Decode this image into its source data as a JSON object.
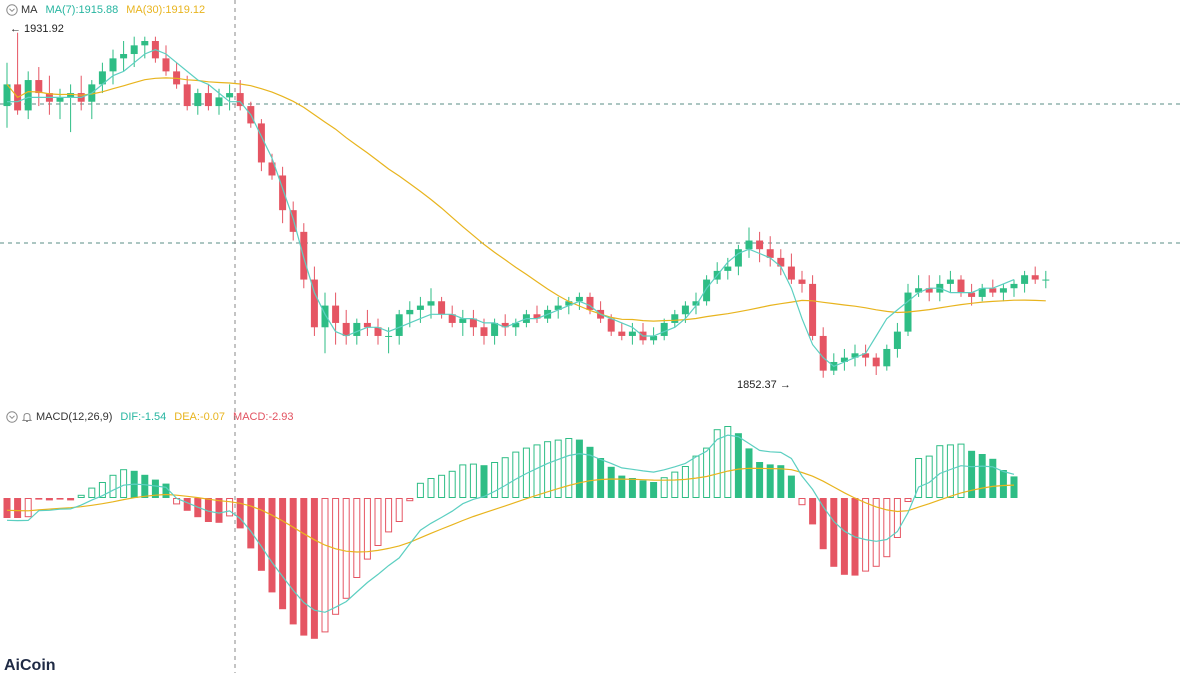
{
  "indicators": {
    "ma": {
      "label": "MA",
      "ma7": "MA(7):1915.88",
      "ma30": "MA(30):1919.12",
      "ma7_color": "#26b5a0",
      "ma30_color": "#e8b41e"
    },
    "macd": {
      "label": "MACD(12,26,9)",
      "dif": "DIF:-1.54",
      "dea": "DEA:-0.07",
      "macd": "MACD:-2.93",
      "dif_color": "#26b5a0",
      "dea_color": "#e8b41e",
      "macd_color": "#e25260"
    }
  },
  "annotations": {
    "high": "← 1931.92",
    "low": "1852.37 →"
  },
  "logo": "AiCoin",
  "colors": {
    "up": "#2ebd85",
    "down": "#e55563",
    "ma7": "#5ccfc1",
    "ma30": "#e8b41e",
    "dash": "#5a8c86",
    "crosshair": "#888888"
  },
  "chart_data": {
    "type": "candlestick",
    "price_panel": {
      "candles_ohlc": [
        [
          1915,
          1925,
          1910,
          1920
        ],
        [
          1920,
          1931.92,
          1913,
          1914
        ],
        [
          1914,
          1923,
          1912,
          1921
        ],
        [
          1921,
          1924,
          1915,
          1918
        ],
        [
          1918,
          1922,
          1913,
          1916
        ],
        [
          1916,
          1919,
          1912,
          1917
        ],
        [
          1917,
          1920,
          1909,
          1918
        ],
        [
          1918,
          1922,
          1914,
          1916
        ],
        [
          1916,
          1921,
          1912,
          1920
        ],
        [
          1920,
          1925,
          1918,
          1923
        ],
        [
          1923,
          1928,
          1920,
          1926
        ],
        [
          1926,
          1930,
          1923,
          1927
        ],
        [
          1927,
          1931,
          1924,
          1929
        ],
        [
          1929,
          1931,
          1926,
          1930
        ],
        [
          1930,
          1931,
          1925,
          1926
        ],
        [
          1926,
          1929,
          1922,
          1923
        ],
        [
          1923,
          1925,
          1919,
          1920
        ],
        [
          1920,
          1922,
          1914,
          1915
        ],
        [
          1915,
          1919,
          1913,
          1918
        ],
        [
          1918,
          1920,
          1914,
          1915
        ],
        [
          1915,
          1919,
          1913,
          1917
        ],
        [
          1917,
          1920,
          1914,
          1918
        ],
        [
          1918,
          1921,
          1914,
          1915
        ],
        [
          1915,
          1916,
          1910,
          1911
        ],
        [
          1911,
          1912,
          1900,
          1902
        ],
        [
          1902,
          1904,
          1898,
          1899
        ],
        [
          1899,
          1901,
          1888,
          1891
        ],
        [
          1891,
          1893,
          1884,
          1886
        ],
        [
          1886,
          1888,
          1873,
          1875
        ],
        [
          1875,
          1878,
          1862,
          1864
        ],
        [
          1864,
          1872,
          1858,
          1869
        ],
        [
          1869,
          1872,
          1860,
          1865
        ],
        [
          1865,
          1868,
          1860,
          1862
        ],
        [
          1862,
          1866,
          1860,
          1865
        ],
        [
          1865,
          1868,
          1862,
          1864
        ],
        [
          1864,
          1866,
          1860,
          1862
        ],
        [
          1862,
          1864,
          1858,
          1862
        ],
        [
          1862,
          1868,
          1860,
          1867
        ],
        [
          1867,
          1870,
          1864,
          1868
        ],
        [
          1868,
          1871,
          1865,
          1869
        ],
        [
          1869,
          1873,
          1866,
          1870
        ],
        [
          1870,
          1871,
          1866,
          1867
        ],
        [
          1867,
          1869,
          1864,
          1865
        ],
        [
          1865,
          1868,
          1862,
          1866
        ],
        [
          1866,
          1868,
          1862,
          1864
        ],
        [
          1864,
          1866,
          1860,
          1862
        ],
        [
          1862,
          1866,
          1860,
          1865
        ],
        [
          1865,
          1867,
          1862,
          1864
        ],
        [
          1864,
          1866,
          1862,
          1865
        ],
        [
          1865,
          1868,
          1864,
          1867
        ],
        [
          1867,
          1869,
          1865,
          1866
        ],
        [
          1866,
          1869,
          1865,
          1868
        ],
        [
          1868,
          1871,
          1866,
          1869
        ],
        [
          1869,
          1871,
          1867,
          1870
        ],
        [
          1870,
          1872,
          1868,
          1871
        ],
        [
          1871,
          1872,
          1867,
          1868
        ],
        [
          1868,
          1870,
          1865,
          1866
        ],
        [
          1866,
          1867,
          1862,
          1863
        ],
        [
          1863,
          1865,
          1861,
          1862
        ],
        [
          1862,
          1865,
          1860,
          1863
        ],
        [
          1863,
          1865,
          1860,
          1861
        ],
        [
          1861,
          1864,
          1860,
          1862
        ],
        [
          1862,
          1866,
          1861,
          1865
        ],
        [
          1865,
          1868,
          1864,
          1867
        ],
        [
          1867,
          1870,
          1865,
          1869
        ],
        [
          1869,
          1872,
          1867,
          1870
        ],
        [
          1870,
          1876,
          1869,
          1875
        ],
        [
          1875,
          1879,
          1874,
          1877
        ],
        [
          1877,
          1880,
          1875,
          1878
        ],
        [
          1878,
          1883,
          1876,
          1882
        ],
        [
          1882,
          1887,
          1880,
          1884
        ],
        [
          1884,
          1886,
          1879,
          1882
        ],
        [
          1882,
          1885,
          1878,
          1880
        ],
        [
          1880,
          1882,
          1876,
          1878
        ],
        [
          1878,
          1881,
          1874,
          1875
        ],
        [
          1875,
          1877,
          1872,
          1874
        ],
        [
          1874,
          1876,
          1861,
          1862
        ],
        [
          1862,
          1864,
          1852.37,
          1854
        ],
        [
          1854,
          1858,
          1853,
          1856
        ],
        [
          1856,
          1859,
          1854,
          1857
        ],
        [
          1857,
          1860,
          1855,
          1858
        ],
        [
          1858,
          1860,
          1855,
          1857
        ],
        [
          1857,
          1858,
          1853,
          1855
        ],
        [
          1855,
          1860,
          1854,
          1859
        ],
        [
          1859,
          1865,
          1857,
          1863
        ],
        [
          1863,
          1874,
          1862,
          1872
        ],
        [
          1872,
          1876,
          1871,
          1873
        ],
        [
          1873,
          1876,
          1870,
          1872
        ],
        [
          1872,
          1876,
          1870,
          1874
        ],
        [
          1874,
          1877,
          1872,
          1875
        ],
        [
          1875,
          1876,
          1871,
          1872
        ],
        [
          1872,
          1874,
          1869,
          1871
        ],
        [
          1871,
          1874,
          1870,
          1873
        ],
        [
          1873,
          1875,
          1871,
          1872
        ],
        [
          1872,
          1874,
          1870,
          1873
        ],
        [
          1873,
          1875,
          1871,
          1874
        ],
        [
          1874,
          1877,
          1872,
          1876
        ],
        [
          1876,
          1878,
          1874,
          1875
        ],
        [
          1875,
          1877,
          1873,
          1875
        ]
      ],
      "ma7": [
        1916,
        1916,
        1917,
        1917,
        1917,
        1917,
        1917,
        1917,
        1918,
        1920,
        1922,
        1923,
        1925,
        1927,
        1928,
        1927,
        1925,
        1923,
        1921,
        1920,
        1918,
        1916,
        1916,
        1913,
        1908,
        1903,
        1896,
        1889,
        1880,
        1872,
        1867,
        1863,
        1862,
        1863,
        1864,
        1864,
        1863,
        1864,
        1865,
        1866,
        1867,
        1867,
        1867,
        1866,
        1866,
        1865,
        1865,
        1864,
        1865,
        1866,
        1866,
        1867,
        1868,
        1869,
        1870,
        1869,
        1867,
        1866,
        1865,
        1864,
        1862,
        1862,
        1863,
        1864,
        1866,
        1869,
        1873,
        1876,
        1879,
        1881,
        1882,
        1881,
        1880,
        1878,
        1873,
        1866,
        1860,
        1857,
        1855,
        1856,
        1857,
        1858,
        1862,
        1866,
        1868,
        1870,
        1872,
        1873,
        1873,
        1872,
        1872,
        1872,
        1873,
        1873,
        1874,
        1875
      ]
    },
    "macd_panel": {
      "histogram": [
        -2.5,
        -2.5,
        -2.4,
        -0.2,
        -0.3,
        -0.2,
        -0.3,
        0.4,
        1.3,
        2.0,
        2.9,
        3.6,
        3.4,
        2.9,
        2.3,
        1.8,
        -0.8,
        -1.6,
        -2.4,
        -3.0,
        -3.1,
        -2.3,
        -3.8,
        -6.3,
        -9.1,
        -11.8,
        -13.9,
        -15.8,
        -17.2,
        -17.6,
        -16.8,
        -14.6,
        -12.6,
        -10.0,
        -7.7,
        -6.0,
        -4.3,
        -3.0,
        -0.4,
        1.9,
        2.5,
        2.9,
        3.4,
        4.2,
        4.3,
        4.1,
        4.5,
        5.1,
        5.8,
        6.3,
        6.7,
        7.1,
        7.3,
        7.5,
        7.3,
        6.4,
        5.0,
        3.9,
        2.8,
        2.5,
        2.2,
        2.0,
        2.6,
        3.3,
        4.0,
        5.3,
        6.3,
        8.6,
        9.0,
        8.1,
        6.2,
        4.5,
        4.2,
        4.1,
        2.8,
        -0.9,
        -3.3,
        -6.4,
        -8.6,
        -9.6,
        -9.7,
        -9.2,
        -8.6,
        -7.4,
        -5.0,
        -0.5,
        5.0,
        5.3,
        6.6,
        6.7,
        6.8,
        5.9,
        5.5,
        4.9,
        3.5,
        2.7
      ]
    }
  }
}
